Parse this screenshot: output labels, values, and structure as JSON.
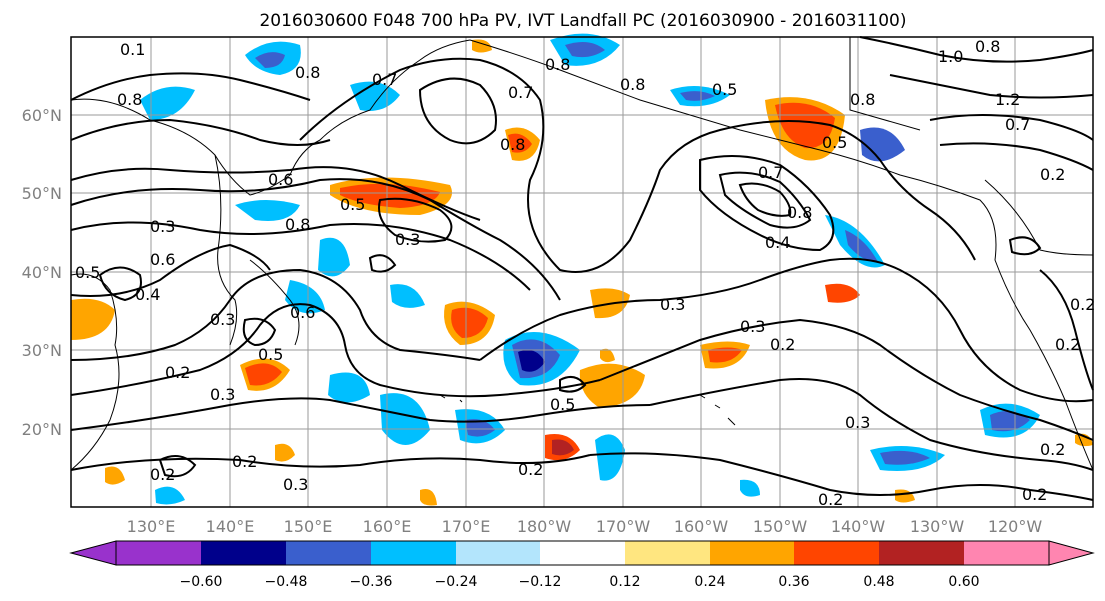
{
  "title": "2016030600 F048 700 hPa PV, IVT Landfall PC (2016030900 - 2016031100)",
  "lat_labels": [
    "60°N",
    "50°N",
    "40°N",
    "30°N",
    "20°N"
  ],
  "lon_labels": [
    "130°E",
    "140°E",
    "150°E",
    "160°E",
    "170°E",
    "180°W",
    "170°W",
    "160°W",
    "150°W",
    "140°W",
    "130°W",
    "120°W"
  ],
  "contour_labels": [
    "0.1",
    "0.8",
    "0.8",
    "0.7",
    "0.7",
    "0.8",
    "0.8",
    "0.5",
    "0.8",
    "1.0",
    "0.8",
    "1.2",
    "0.7",
    "0.8",
    "0.5",
    "0.2",
    "0.6",
    "0.5",
    "0.3",
    "0.8",
    "0.7",
    "0.8",
    "0.4",
    "0.3",
    "0.3",
    "0.6",
    "0.5",
    "0.4",
    "0.3",
    "0.2",
    "0.6",
    "0.5",
    "0.2",
    "0.3",
    "0.2",
    "0.3",
    "0.2",
    "0.5",
    "0.2",
    "0.3",
    "0.2",
    "0.2",
    "0.2",
    "0.2",
    "0.2",
    "0.3"
  ],
  "colorbar": {
    "ticks": [
      "−0.60",
      "−0.48",
      "−0.36",
      "−0.24",
      "−0.12",
      "0.12",
      "0.24",
      "0.36",
      "0.48",
      "0.60"
    ],
    "colors": [
      "#9932cc",
      "#00008b",
      "#3a5fcd",
      "#00bfff",
      "#b3e5fc",
      "#ffffff",
      "#ffe680",
      "#ffa500",
      "#ff4500",
      "#b22222",
      "#ff85b0"
    ]
  },
  "colors": {
    "neg_strong": "#00008b",
    "neg_mid": "#3a5fcd",
    "neg_light": "#00bfff",
    "neg_faint": "#b3e5fc",
    "pos_faint": "#ffe680",
    "pos_light": "#ffa500",
    "pos_mid": "#ff4500",
    "pos_strong": "#b22222"
  }
}
